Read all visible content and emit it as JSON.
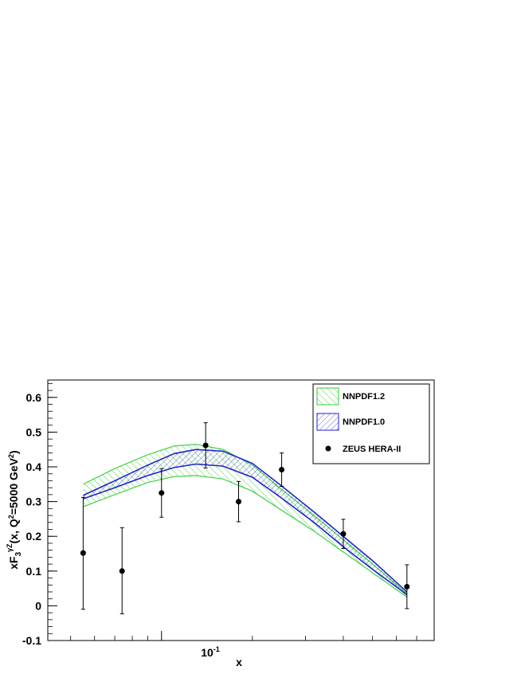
{
  "chart_data": {
    "type": "scatter",
    "xscale": "log",
    "xlim": [
      0.042,
      0.8
    ],
    "ylim": [
      -0.1,
      0.65
    ],
    "xlabel": "x",
    "ylabel": "xF3^γZ(x, Q²=5000 GeV²)",
    "ylabel_parts": {
      "main": "xF",
      "sub": "3",
      "sup": "γZ",
      "rest": "(x, Q",
      "q_sup": "2",
      "tail": "=5000 GeV",
      "tail_sup": "2",
      "close": ")"
    },
    "yticks": [
      {
        "value": -0.1,
        "label": "-0.1"
      },
      {
        "value": 0,
        "label": "0"
      },
      {
        "value": 0.1,
        "label": "0.1"
      },
      {
        "value": 0.2,
        "label": "0.2"
      },
      {
        "value": 0.3,
        "label": "0.3"
      },
      {
        "value": 0.4,
        "label": "0.4"
      },
      {
        "value": 0.5,
        "label": "0.5"
      },
      {
        "value": 0.6,
        "label": "0.6"
      }
    ],
    "xtick_major": {
      "value": 0.1,
      "label_base": "10",
      "label_exp": "-1"
    },
    "legend_position": "top-right",
    "series": [
      {
        "name": "NNPDF1.2",
        "kind": "band",
        "color": "#33cc33",
        "hatch": "\\",
        "x": [
          0.055,
          0.07,
          0.09,
          0.11,
          0.13,
          0.16,
          0.2,
          0.25,
          0.32,
          0.4,
          0.5,
          0.65
        ],
        "upper": [
          0.35,
          0.395,
          0.435,
          0.46,
          0.465,
          0.45,
          0.405,
          0.335,
          0.26,
          0.19,
          0.12,
          0.035
        ],
        "lower": [
          0.285,
          0.32,
          0.355,
          0.372,
          0.375,
          0.365,
          0.33,
          0.275,
          0.215,
          0.155,
          0.095,
          0.025
        ]
      },
      {
        "name": "NNPDF1.0",
        "kind": "band",
        "color": "#2222cc",
        "hatch": "/",
        "x": [
          0.055,
          0.07,
          0.09,
          0.11,
          0.13,
          0.16,
          0.2,
          0.25,
          0.32,
          0.4,
          0.5,
          0.65
        ],
        "upper": [
          0.318,
          0.36,
          0.405,
          0.438,
          0.45,
          0.445,
          0.41,
          0.345,
          0.27,
          0.2,
          0.13,
          0.04
        ],
        "lower": [
          0.308,
          0.34,
          0.375,
          0.398,
          0.408,
          0.402,
          0.37,
          0.31,
          0.24,
          0.17,
          0.105,
          0.032
        ]
      },
      {
        "name": "ZEUS HERA-II",
        "kind": "points",
        "color": "#000000",
        "points": [
          {
            "x": 0.055,
            "y": 0.152,
            "err_low": 0.162,
            "err_high": 0.16
          },
          {
            "x": 0.074,
            "y": 0.1,
            "err_low": 0.123,
            "err_high": 0.125
          },
          {
            "x": 0.1,
            "y": 0.325,
            "err_low": 0.07,
            "err_high": 0.07
          },
          {
            "x": 0.14,
            "y": 0.462,
            "err_low": 0.065,
            "err_high": 0.065
          },
          {
            "x": 0.18,
            "y": 0.3,
            "err_low": 0.058,
            "err_high": 0.058
          },
          {
            "x": 0.25,
            "y": 0.392,
            "err_low": 0.048,
            "err_high": 0.048
          },
          {
            "x": 0.4,
            "y": 0.207,
            "err_low": 0.042,
            "err_high": 0.042
          },
          {
            "x": 0.65,
            "y": 0.055,
            "err_low": 0.063,
            "err_high": 0.063
          }
        ]
      }
    ]
  }
}
